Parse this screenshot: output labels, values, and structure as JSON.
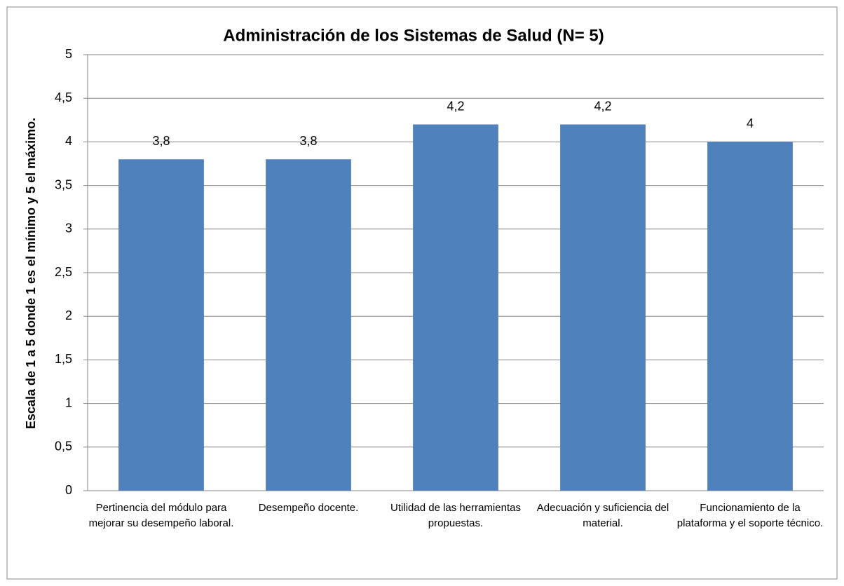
{
  "chart_data": {
    "type": "bar",
    "title": "Administración de los Sistemas de Salud (N= 5)",
    "y_label": "Escala  de 1 a 5 donde 1 es el mínimo y 5 el máximo.",
    "categories": [
      "Pertinencia del módulo para mejorar su desempeño laboral.",
      "Desempeño docente.",
      "Utilidad de las herramientas propuestas.",
      "Adecuación y suficiencia del material.",
      "Funcionamiento de la plataforma y el soporte técnico."
    ],
    "values": [
      3.8,
      3.8,
      4.2,
      4.2,
      4
    ],
    "value_labels": [
      "3,8",
      "3,8",
      "4,2",
      "4,2",
      "4"
    ],
    "color": "#4f81bd",
    "ylim": [
      0,
      5
    ],
    "yticks": [
      0,
      {
        "value": 0.5,
        "label": "0,5"
      },
      1,
      {
        "value": 1.5,
        "label": "1,5"
      },
      2,
      {
        "value": 2.5,
        "label": "2,5"
      },
      3,
      {
        "value": 3.5,
        "label": "3,5"
      },
      4,
      {
        "value": 4.5,
        "label": "4,5"
      },
      5
    ],
    "grid": true
  }
}
